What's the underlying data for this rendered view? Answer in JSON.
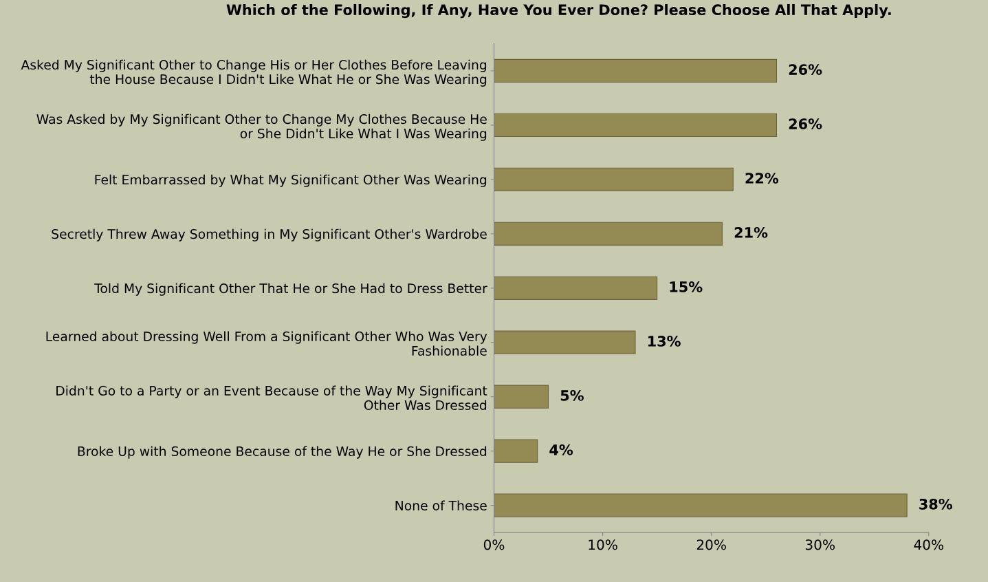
{
  "chart_data": {
    "type": "bar",
    "orientation": "horizontal",
    "title": "Which of the Following, If Any, Have You Ever Done? Please Choose All That Apply.",
    "categories": [
      "Asked My Significant Other to Change His or Her Clothes Before Leaving\nthe House Because I Didn't Like What He or She Was Wearing",
      "Was Asked by My Significant Other to Change My Clothes Because He\nor She Didn't Like What I Was Wearing",
      "Felt Embarrassed by What My Significant Other Was Wearing",
      "Secretly Threw Away Something in My Significant Other's Wardrobe",
      "Told My Significant Other That He or She Had to Dress Better",
      "Learned about Dressing Well From a Significant Other Who Was Very\nFashionable",
      "Didn't Go to a Party or an Event Because of the Way My Significant\nOther Was Dressed",
      "Broke Up with Someone Because of the Way He or She Dressed",
      "None of These"
    ],
    "values": [
      26,
      26,
      22,
      21,
      15,
      13,
      5,
      4,
      38
    ],
    "value_labels": [
      "26%",
      "26%",
      "22%",
      "21%",
      "15%",
      "13%",
      "5%",
      "4%",
      "38%"
    ],
    "color": "#948a54",
    "xlim": [
      0,
      40
    ],
    "xticks": [
      {
        "value": 0,
        "label": "0%"
      },
      {
        "value": 10,
        "label": "10%"
      },
      {
        "value": 20,
        "label": "20%"
      },
      {
        "value": 30,
        "label": "30%"
      },
      {
        "value": 40,
        "label": "40%"
      }
    ],
    "grid": false,
    "legend": false
  }
}
